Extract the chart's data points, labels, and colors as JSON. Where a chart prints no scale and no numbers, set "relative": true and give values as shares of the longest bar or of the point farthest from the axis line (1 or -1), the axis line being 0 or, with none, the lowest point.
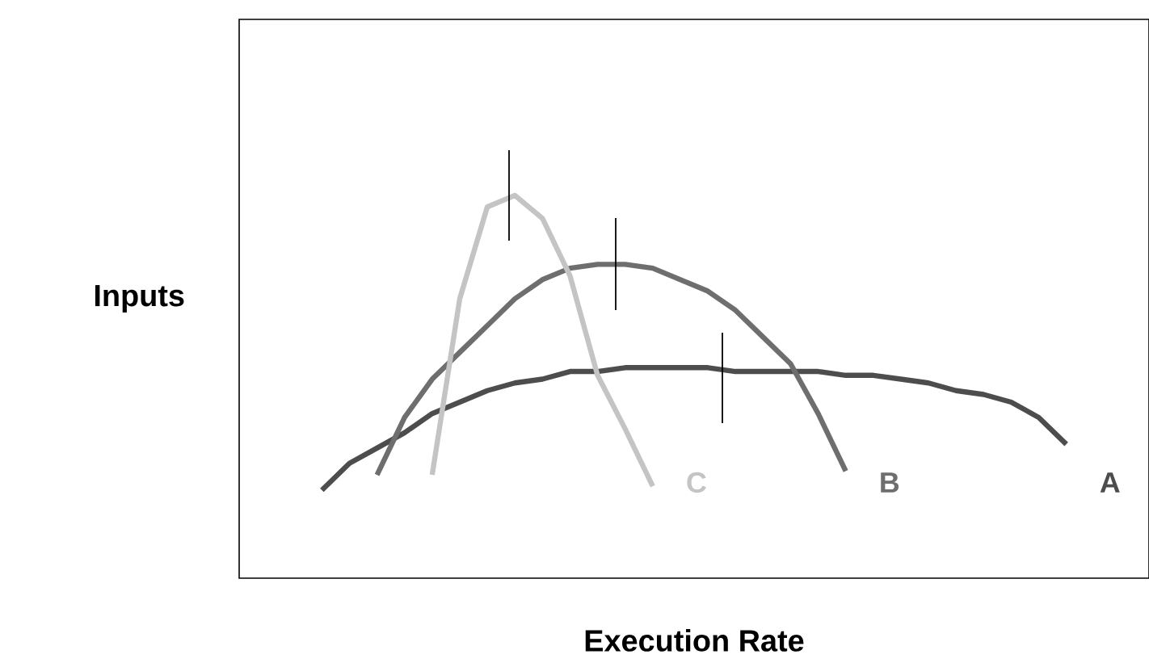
{
  "chart_data": {
    "type": "line",
    "relative": true,
    "xlabel": "Execution Rate",
    "ylabel": "Inputs",
    "tick_labels": false,
    "line_style": "solid",
    "categories": [
      null,
      null,
      null,
      null,
      null,
      null,
      null,
      null,
      null,
      null,
      null,
      null,
      null,
      null,
      null,
      null,
      null,
      null,
      null,
      null,
      null,
      null,
      null,
      null,
      null,
      null,
      null,
      null,
      null,
      null,
      null,
      null,
      null,
      null
    ],
    "series": [
      {
        "name": "A",
        "color": "#4d4d4d",
        "values": [
          null,
          null,
          null,
          0.23,
          0.3,
          0.34,
          0.38,
          0.43,
          0.46,
          0.49,
          0.51,
          0.52,
          0.54,
          0.54,
          0.55,
          0.55,
          0.55,
          0.55,
          0.54,
          0.54,
          0.54,
          0.54,
          0.53,
          0.53,
          0.52,
          0.51,
          0.49,
          0.48,
          0.46,
          0.42,
          0.35,
          null,
          null,
          null
        ]
      },
      {
        "name": "B",
        "color": "#6e6e6e",
        "values": [
          null,
          null,
          null,
          null,
          null,
          0.27,
          0.42,
          0.52,
          0.59,
          0.66,
          0.73,
          0.78,
          0.81,
          0.82,
          0.82,
          0.81,
          0.78,
          0.75,
          0.7,
          0.63,
          0.56,
          0.43,
          0.28,
          null,
          null,
          null,
          null,
          null,
          null,
          null,
          null,
          null,
          null,
          null
        ]
      },
      {
        "name": "C",
        "color": "#c4c4c4",
        "values": [
          null,
          null,
          null,
          null,
          null,
          null,
          null,
          0.27,
          0.73,
          0.97,
          1.0,
          0.94,
          0.79,
          0.53,
          0.39,
          0.24,
          null,
          null,
          null,
          null,
          null,
          null,
          null,
          null,
          null,
          null,
          null,
          null,
          null,
          null,
          null,
          null,
          null,
          null
        ]
      }
    ]
  }
}
